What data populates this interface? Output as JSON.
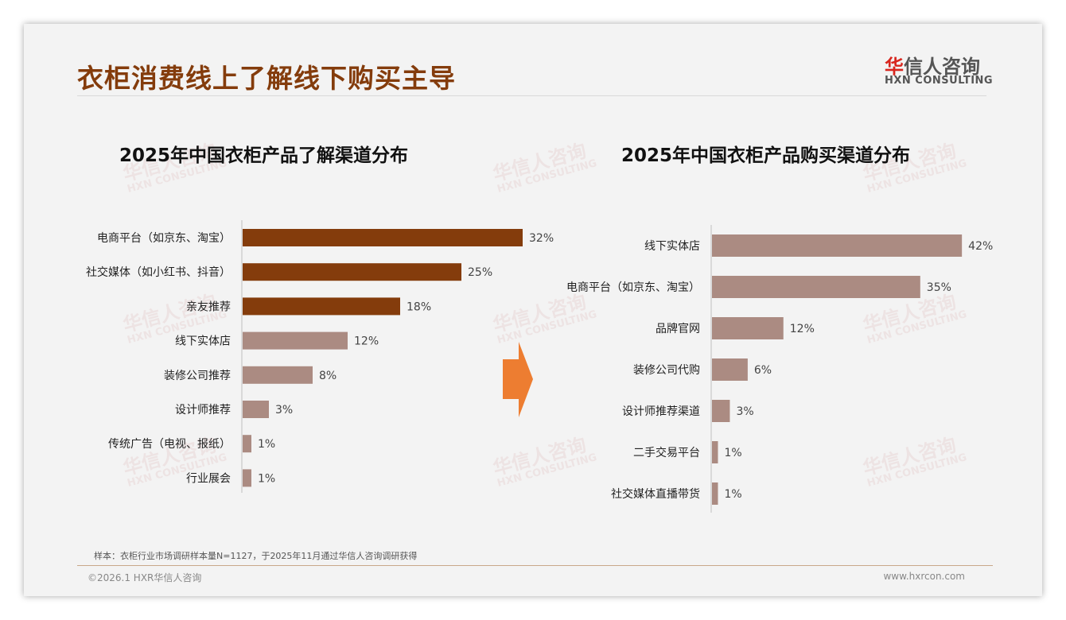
{
  "header": {
    "title": "衣柜消费线上了解线下购买主导",
    "logo_cn_red": "华",
    "logo_cn": "信人咨询",
    "logo_en": "HXN CONSULTING"
  },
  "watermark": {
    "cn": "华信人咨询",
    "en": "HXN CONSULTING"
  },
  "colors": {
    "dark": "#843c0c",
    "light": "#ab8b82",
    "arrow": "#ed7d31"
  },
  "chart_data": [
    {
      "type": "bar",
      "orientation": "horizontal",
      "title": "2025年中国衣柜产品了解渠道分布",
      "categories": [
        "电商平台（如京东、淘宝）",
        "社交媒体（如小红书、抖音）",
        "亲友推荐",
        "线下实体店",
        "装修公司推荐",
        "设计师推荐",
        "传统广告（电视、报纸）",
        "行业展会"
      ],
      "values": [
        32,
        25,
        18,
        12,
        8,
        3,
        1,
        1
      ],
      "labels": [
        "32%",
        "25%",
        "18%",
        "12%",
        "8%",
        "3%",
        "1%",
        "1%"
      ],
      "highlight_top": 3,
      "unit": "%"
    },
    {
      "type": "bar",
      "orientation": "horizontal",
      "title": "2025年中国衣柜产品购买渠道分布",
      "categories": [
        "线下实体店",
        "电商平台（如京东、淘宝）",
        "品牌官网",
        "装修公司代购",
        "设计师推荐渠道",
        "二手交易平台",
        "社交媒体直播带货"
      ],
      "values": [
        42,
        35,
        12,
        6,
        3,
        1,
        1
      ],
      "labels": [
        "42%",
        "35%",
        "12%",
        "6%",
        "3%",
        "1%",
        "1%"
      ],
      "highlight_top": 0,
      "unit": "%"
    }
  ],
  "footer": {
    "note": "样本：衣柜行业市场调研样本量N=1127，于2025年11月通过华信人咨询调研获得",
    "copyright": "©2026.1 HXR华信人咨询",
    "url": "www.hxrcon.com"
  }
}
